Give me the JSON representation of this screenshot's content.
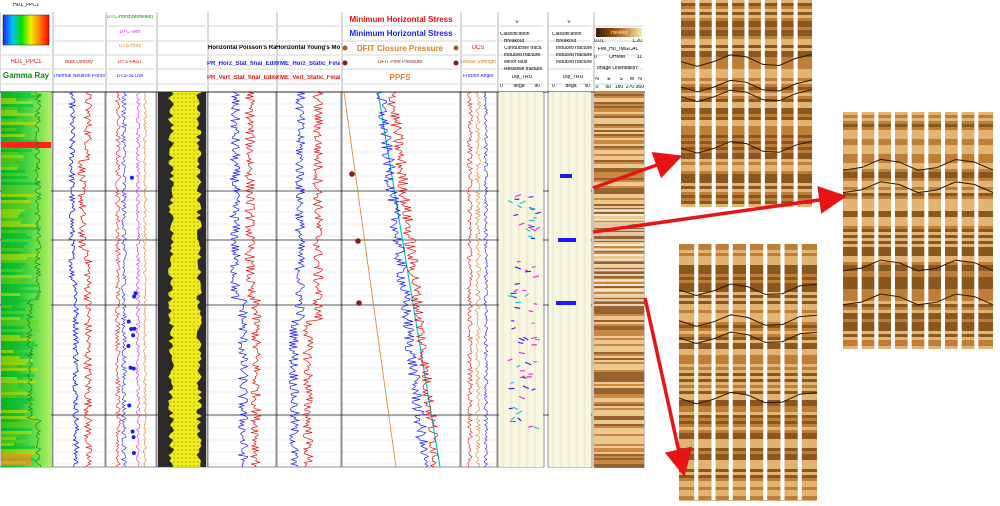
{
  "colors": {
    "track_border": "#000000",
    "gamma_green": "#1fb31f",
    "density_blue": "#1a1aff",
    "red_curve": "#e81010",
    "cyan_curve": "#00c8c8",
    "orange_line": "#e08020",
    "magenta": "#e020e0",
    "yellow_fill": "#f0ec1a",
    "brown_dot": "#8b1a1a",
    "arrow_red": "#e81414",
    "image_tan": "#c88a3c",
    "image_dark": "#5a2e0a"
  },
  "track1": {
    "hd_ppc1_colorbar": "HD1_PPC1",
    "hd1_ppc1": "HD1_PPC1",
    "gamma_ray": "Gamma Ray"
  },
  "track2": {
    "bulk_density": "Bulk Density",
    "thermal_neutron": "Thermal Neutron Porosity"
  },
  "track3": {
    "dtc_horiz_modeled": "DTC-Horiz(Modeled)",
    "dtc_vert": "DTC-Vert",
    "dts_horz": "DTS-Horz",
    "dts_fast": "DTS-FAST",
    "dts_slow": "DTS-SLOW"
  },
  "track5": {
    "title": "Horizontal Poisson's Ratio",
    "pr_horz_stat": "PR_Horz_Stat_final_Edited",
    "pr_vert_stat": "PR_Vert_Stat_final_Edited"
  },
  "track6": {
    "title": "Horizontal Young's Modulus",
    "yme_horz": "YME_Horz_Static_Final",
    "yme_vert": "YME_Vert_Static_Final"
  },
  "track7": {
    "min_horiz_stress_red": "Minimum Horizontal Stress",
    "min_horiz_stress_blue": "Minimum Horizontal Stress",
    "dfit_closure": "DFIT Closure Pressure",
    "dfit_pore": "DFIT Pore Pressure",
    "ppfs": "PPFS"
  },
  "track8": {
    "ucs": "UCS",
    "tensile": "Tensile Strength",
    "friction": "Friction Angle"
  },
  "track9": {
    "classification": "Classification",
    "breakout": "Breakout",
    "conductive": "Conductive fracture",
    "induced": "Induced fracture",
    "minor_fault": "Minor fault",
    "resistive": "Resistive fracture",
    "dip": "Dip_TRU",
    "scale_min": "0",
    "scale_unit": "dega",
    "scale_max": "90",
    "top_zero": "0"
  },
  "track10": {
    "classification": "Classification",
    "breakout": "Breakout",
    "induced1": "Induced fracture",
    "induced2": "Induced fracture",
    "induced3": "Induced fracture",
    "dip": "Dip_TRU",
    "scale_min": "0",
    "scale_unit": "dega",
    "scale_max": "90",
    "top_zero": "0"
  },
  "track11": {
    "heated": "Heated",
    "heated_min": "0.01",
    "heated_max": "1.20",
    "fmi_label": "FMI_HD_IMGCAL",
    "ohmm": "OHMM",
    "ohmm_left": "0",
    "ohmm_right": "11",
    "orientation": "Image Orientation°",
    "n1": "N",
    "e": "E",
    "s": "S",
    "w": "W",
    "n2": "N",
    "deg0": "0",
    "deg90": "90",
    "deg180": "180",
    "deg270": "270",
    "deg360": "360"
  }
}
